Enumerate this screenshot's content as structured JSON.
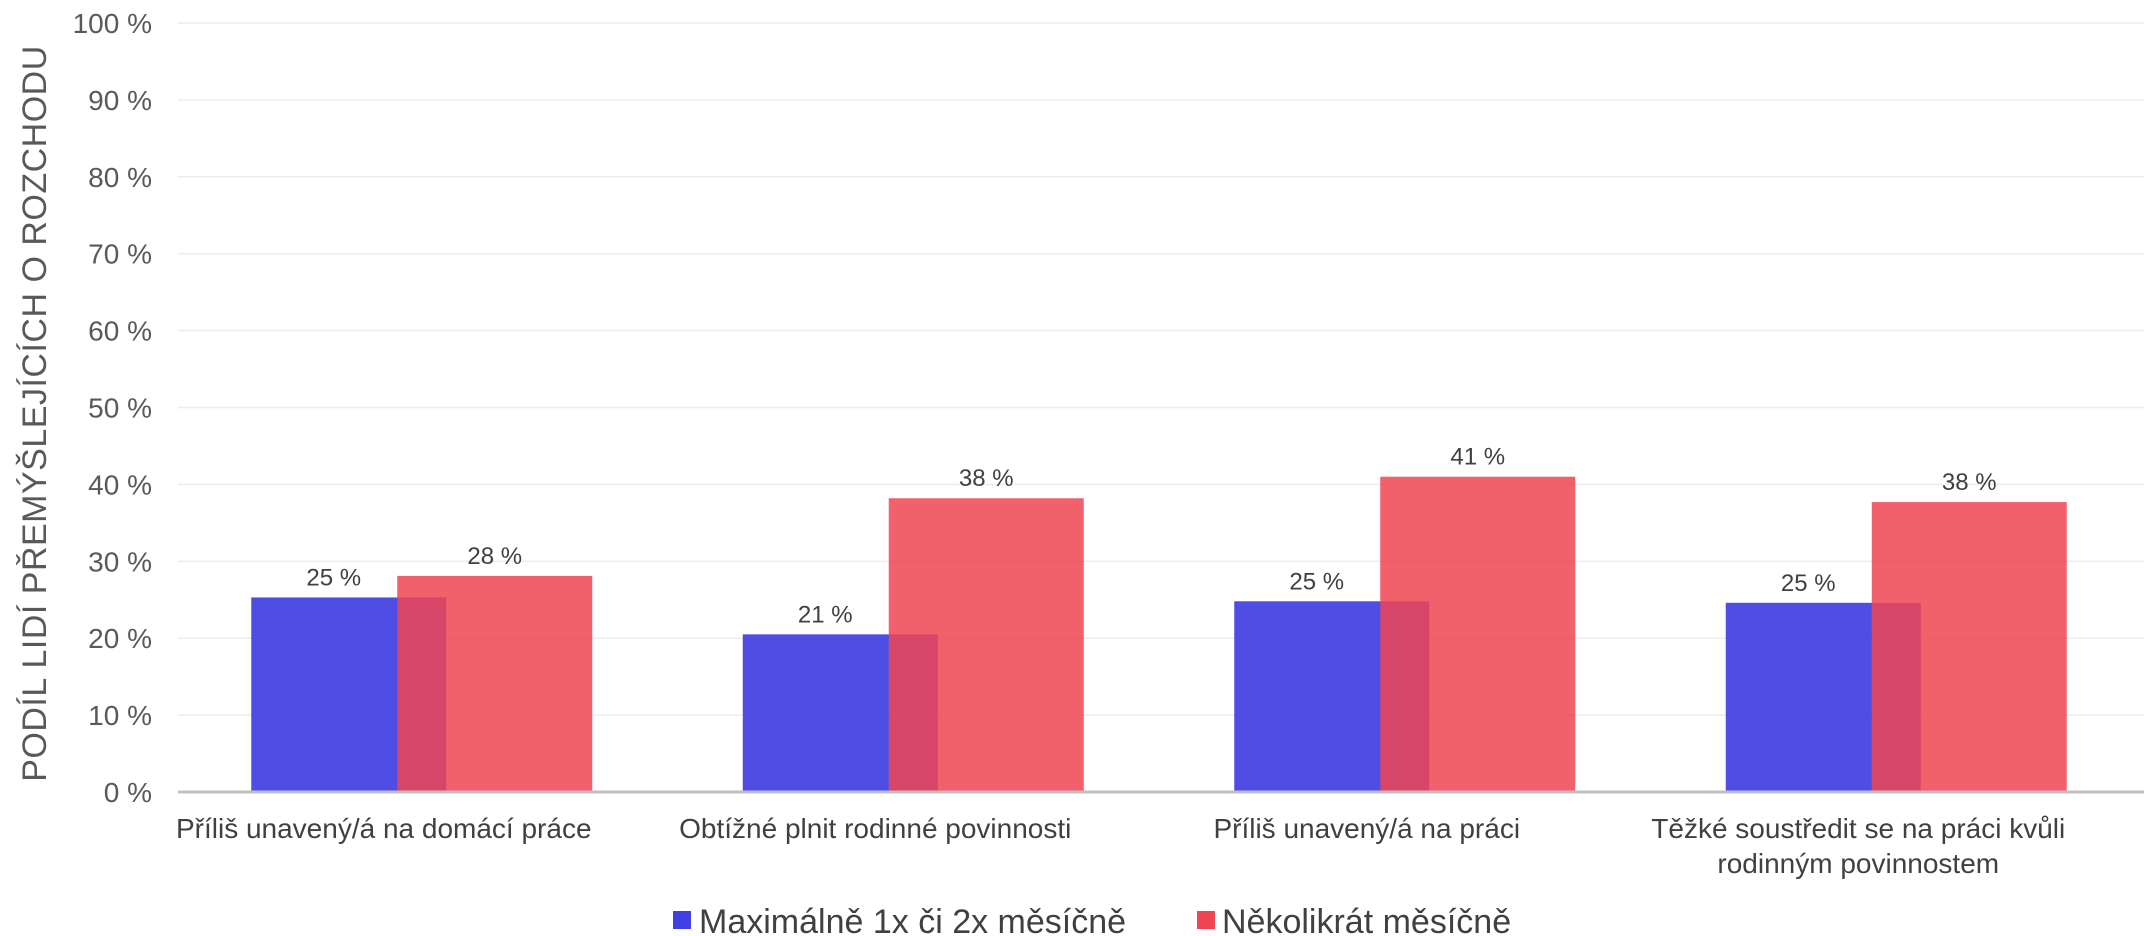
{
  "chart_data": {
    "type": "bar",
    "title": "",
    "xlabel": "",
    "ylabel": "PODÍL LIDÍ PŘEMÝŠLEJÍCÍCH O ROZCHODU",
    "ylim": [
      0,
      100
    ],
    "yticks": [
      "0 %",
      "10 %",
      "20 %",
      "30 %",
      "40 %",
      "50 %",
      "60 %",
      "70 %",
      "80 %",
      "90 %",
      "100 %"
    ],
    "categories": [
      [
        "Příliš unavený/á na domácí práce"
      ],
      [
        "Obtížné plnit rodinné povinnosti"
      ],
      [
        "Příliš unavený/á na práci"
      ],
      [
        "Těžké soustředit se na práci kvůli",
        "rodinným povinnostem"
      ]
    ],
    "series": [
      {
        "name": "Maximálně 1x či 2x měsíčně",
        "color": "#3f3fe3",
        "values": [
          25.3,
          20.5,
          24.8,
          24.6
        ],
        "labels": [
          "25 %",
          "21 %",
          "25 %",
          "25 %"
        ]
      },
      {
        "name": "Několikrát měsíčně",
        "color": "#f04452",
        "values": [
          28.1,
          38.2,
          41.0,
          37.7
        ],
        "labels": [
          "28 %",
          "38 %",
          "41 %",
          "38 %"
        ]
      }
    ],
    "grid": true,
    "legend": "bottom"
  }
}
